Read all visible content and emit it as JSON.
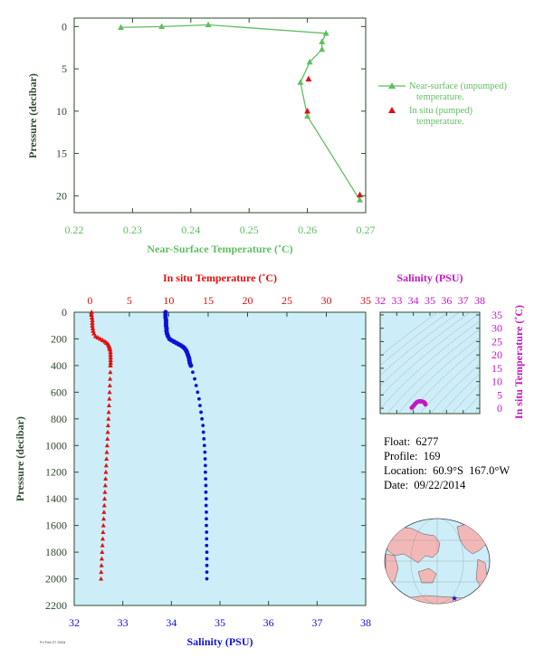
{
  "colors": {
    "near_surface": "#5fbf5f",
    "in_situ_temp": "#e01010",
    "salinity": "#1010d8",
    "ts_magenta": "#c418c4",
    "axis_text": "#2e4a2e",
    "panel_bg": "#cdeef8",
    "land": "#f2b8b8",
    "ocean": "#cdeef8"
  },
  "float_info": {
    "float": "Float:  6277",
    "profile": "Profile:  169",
    "location": "Location:  60.9°S  167.0°W",
    "date": "Date:  09/22/2014"
  },
  "footer_text": "Fri Feb 27 2015",
  "chart_data": [
    {
      "id": "near-surface",
      "type": "line",
      "xlabel": "Near-Surface Temperature (˚C)",
      "ylabel": "Pressure (decibar)",
      "xlim": [
        0.22,
        0.27
      ],
      "ylim": [
        22,
        -1
      ],
      "xticks": [
        "0.22",
        "0.23",
        "0.24",
        "0.25",
        "0.26",
        "0.27"
      ],
      "yticks": [
        "0",
        "5",
        "10",
        "15",
        "20"
      ],
      "legend_position": "right",
      "series": [
        {
          "name": "Near-surface (unpumped)\ntemperature.",
          "marker": "triangle",
          "color": "#5fbf5f",
          "points": [
            [
              0.228,
              0.1
            ],
            [
              0.235,
              0.0
            ],
            [
              0.243,
              -0.2
            ],
            [
              0.2632,
              0.8
            ],
            [
              0.2625,
              1.8
            ],
            [
              0.2625,
              2.7
            ],
            [
              0.2604,
              4.2
            ],
            [
              0.2588,
              6.6
            ],
            [
              0.26,
              10.6
            ],
            [
              0.269,
              20.5
            ]
          ]
        },
        {
          "name": "In situ (pumped)\ntemperature.",
          "marker": "triangle",
          "color": "#e01010",
          "points": [
            [
              0.2602,
              6.2
            ],
            [
              0.26,
              10.0
            ],
            [
              0.269,
              19.9
            ]
          ]
        }
      ]
    },
    {
      "id": "profile",
      "type": "scatter",
      "top_xlabel": "In situ Temperature (˚C)",
      "bottom_xlabel": "Salinity (PSU)",
      "ylabel": "Pressure (decibar)",
      "temp_lim": [
        -2,
        35
      ],
      "sal_lim": [
        32,
        38
      ],
      "ylim": [
        0,
        2200
      ],
      "temp_ticks": [
        "0",
        "5",
        "10",
        "15",
        "20",
        "25",
        "30",
        "35"
      ],
      "sal_ticks": [
        "32",
        "33",
        "34",
        "35",
        "36",
        "37",
        "38"
      ],
      "yticks": [
        "0",
        "200",
        "400",
        "600",
        "800",
        "1000",
        "1200",
        "1400",
        "1600",
        "1800",
        "2000",
        "2200"
      ],
      "temperature": [
        [
          0.2,
          0
        ],
        [
          0.2,
          20
        ],
        [
          0.25,
          40
        ],
        [
          0.3,
          60
        ],
        [
          0.3,
          80
        ],
        [
          0.3,
          100
        ],
        [
          0.35,
          120
        ],
        [
          0.4,
          140
        ],
        [
          0.5,
          160
        ],
        [
          0.7,
          180
        ],
        [
          1.0,
          190
        ],
        [
          1.3,
          200
        ],
        [
          1.6,
          210
        ],
        [
          1.9,
          220
        ],
        [
          2.1,
          230
        ],
        [
          2.3,
          240
        ],
        [
          2.4,
          250
        ],
        [
          2.45,
          260
        ],
        [
          2.5,
          270
        ],
        [
          2.55,
          280
        ],
        [
          2.6,
          300
        ],
        [
          2.6,
          320
        ],
        [
          2.62,
          340
        ],
        [
          2.62,
          360
        ],
        [
          2.62,
          380
        ],
        [
          2.6,
          400
        ],
        [
          2.58,
          450
        ],
        [
          2.55,
          500
        ],
        [
          2.52,
          550
        ],
        [
          2.49,
          600
        ],
        [
          2.46,
          650
        ],
        [
          2.42,
          700
        ],
        [
          2.38,
          750
        ],
        [
          2.34,
          800
        ],
        [
          2.3,
          850
        ],
        [
          2.26,
          900
        ],
        [
          2.22,
          950
        ],
        [
          2.18,
          1000
        ],
        [
          2.14,
          1050
        ],
        [
          2.1,
          1100
        ],
        [
          2.06,
          1150
        ],
        [
          2.02,
          1200
        ],
        [
          1.98,
          1250
        ],
        [
          1.94,
          1300
        ],
        [
          1.9,
          1350
        ],
        [
          1.86,
          1400
        ],
        [
          1.82,
          1450
        ],
        [
          1.78,
          1500
        ],
        [
          1.74,
          1550
        ],
        [
          1.7,
          1600
        ],
        [
          1.66,
          1650
        ],
        [
          1.62,
          1700
        ],
        [
          1.58,
          1750
        ],
        [
          1.54,
          1800
        ],
        [
          1.5,
          1850
        ],
        [
          1.46,
          1900
        ],
        [
          1.42,
          1950
        ],
        [
          1.4,
          2000
        ]
      ],
      "salinity": [
        [
          33.88,
          0
        ],
        [
          33.88,
          20
        ],
        [
          33.88,
          40
        ],
        [
          33.89,
          60
        ],
        [
          33.89,
          80
        ],
        [
          33.89,
          100
        ],
        [
          33.9,
          120
        ],
        [
          33.9,
          140
        ],
        [
          33.91,
          160
        ],
        [
          33.93,
          180
        ],
        [
          33.96,
          200
        ],
        [
          34.0,
          210
        ],
        [
          34.05,
          220
        ],
        [
          34.1,
          230
        ],
        [
          34.15,
          240
        ],
        [
          34.2,
          250
        ],
        [
          34.24,
          260
        ],
        [
          34.27,
          270
        ],
        [
          34.3,
          285
        ],
        [
          34.32,
          300
        ],
        [
          34.34,
          320
        ],
        [
          34.36,
          340
        ],
        [
          34.37,
          360
        ],
        [
          34.38,
          380
        ],
        [
          34.4,
          400
        ],
        [
          34.44,
          450
        ],
        [
          34.48,
          500
        ],
        [
          34.51,
          550
        ],
        [
          34.54,
          600
        ],
        [
          34.57,
          650
        ],
        [
          34.59,
          700
        ],
        [
          34.61,
          750
        ],
        [
          34.63,
          800
        ],
        [
          34.65,
          850
        ],
        [
          34.66,
          900
        ],
        [
          34.67,
          950
        ],
        [
          34.68,
          1000
        ],
        [
          34.69,
          1050
        ],
        [
          34.695,
          1100
        ],
        [
          34.7,
          1150
        ],
        [
          34.7,
          1200
        ],
        [
          34.705,
          1250
        ],
        [
          34.71,
          1300
        ],
        [
          34.71,
          1350
        ],
        [
          34.715,
          1400
        ],
        [
          34.715,
          1450
        ],
        [
          34.72,
          1500
        ],
        [
          34.72,
          1550
        ],
        [
          34.72,
          1600
        ],
        [
          34.725,
          1650
        ],
        [
          34.725,
          1700
        ],
        [
          34.725,
          1750
        ],
        [
          34.73,
          1800
        ],
        [
          34.73,
          1850
        ],
        [
          34.73,
          1900
        ],
        [
          34.73,
          1950
        ],
        [
          34.73,
          2000
        ]
      ]
    },
    {
      "id": "ts-diagram",
      "type": "scatter",
      "top_xlabel": "Salinity (PSU)",
      "right_ylabel": "In situ Temperature (˚C)",
      "xlim": [
        32,
        38
      ],
      "ylim": [
        -2,
        36
      ],
      "xticks": [
        "32",
        "33",
        "34",
        "35",
        "36",
        "37",
        "38"
      ],
      "yticks": [
        "0",
        "5",
        "10",
        "15",
        "20",
        "25",
        "30",
        "35"
      ],
      "points": [
        [
          33.9,
          0.2
        ],
        [
          33.95,
          0.4
        ],
        [
          34.0,
          0.8
        ],
        [
          34.05,
          1.2
        ],
        [
          34.1,
          1.6
        ],
        [
          34.15,
          1.9
        ],
        [
          34.2,
          2.2
        ],
        [
          34.25,
          2.4
        ],
        [
          34.3,
          2.5
        ],
        [
          34.35,
          2.6
        ],
        [
          34.4,
          2.6
        ],
        [
          34.45,
          2.6
        ],
        [
          34.5,
          2.5
        ],
        [
          34.55,
          2.5
        ],
        [
          34.6,
          2.4
        ],
        [
          34.65,
          2.2
        ],
        [
          34.68,
          2.0
        ],
        [
          34.7,
          1.8
        ],
        [
          34.72,
          1.6
        ],
        [
          34.73,
          1.4
        ]
      ]
    }
  ]
}
